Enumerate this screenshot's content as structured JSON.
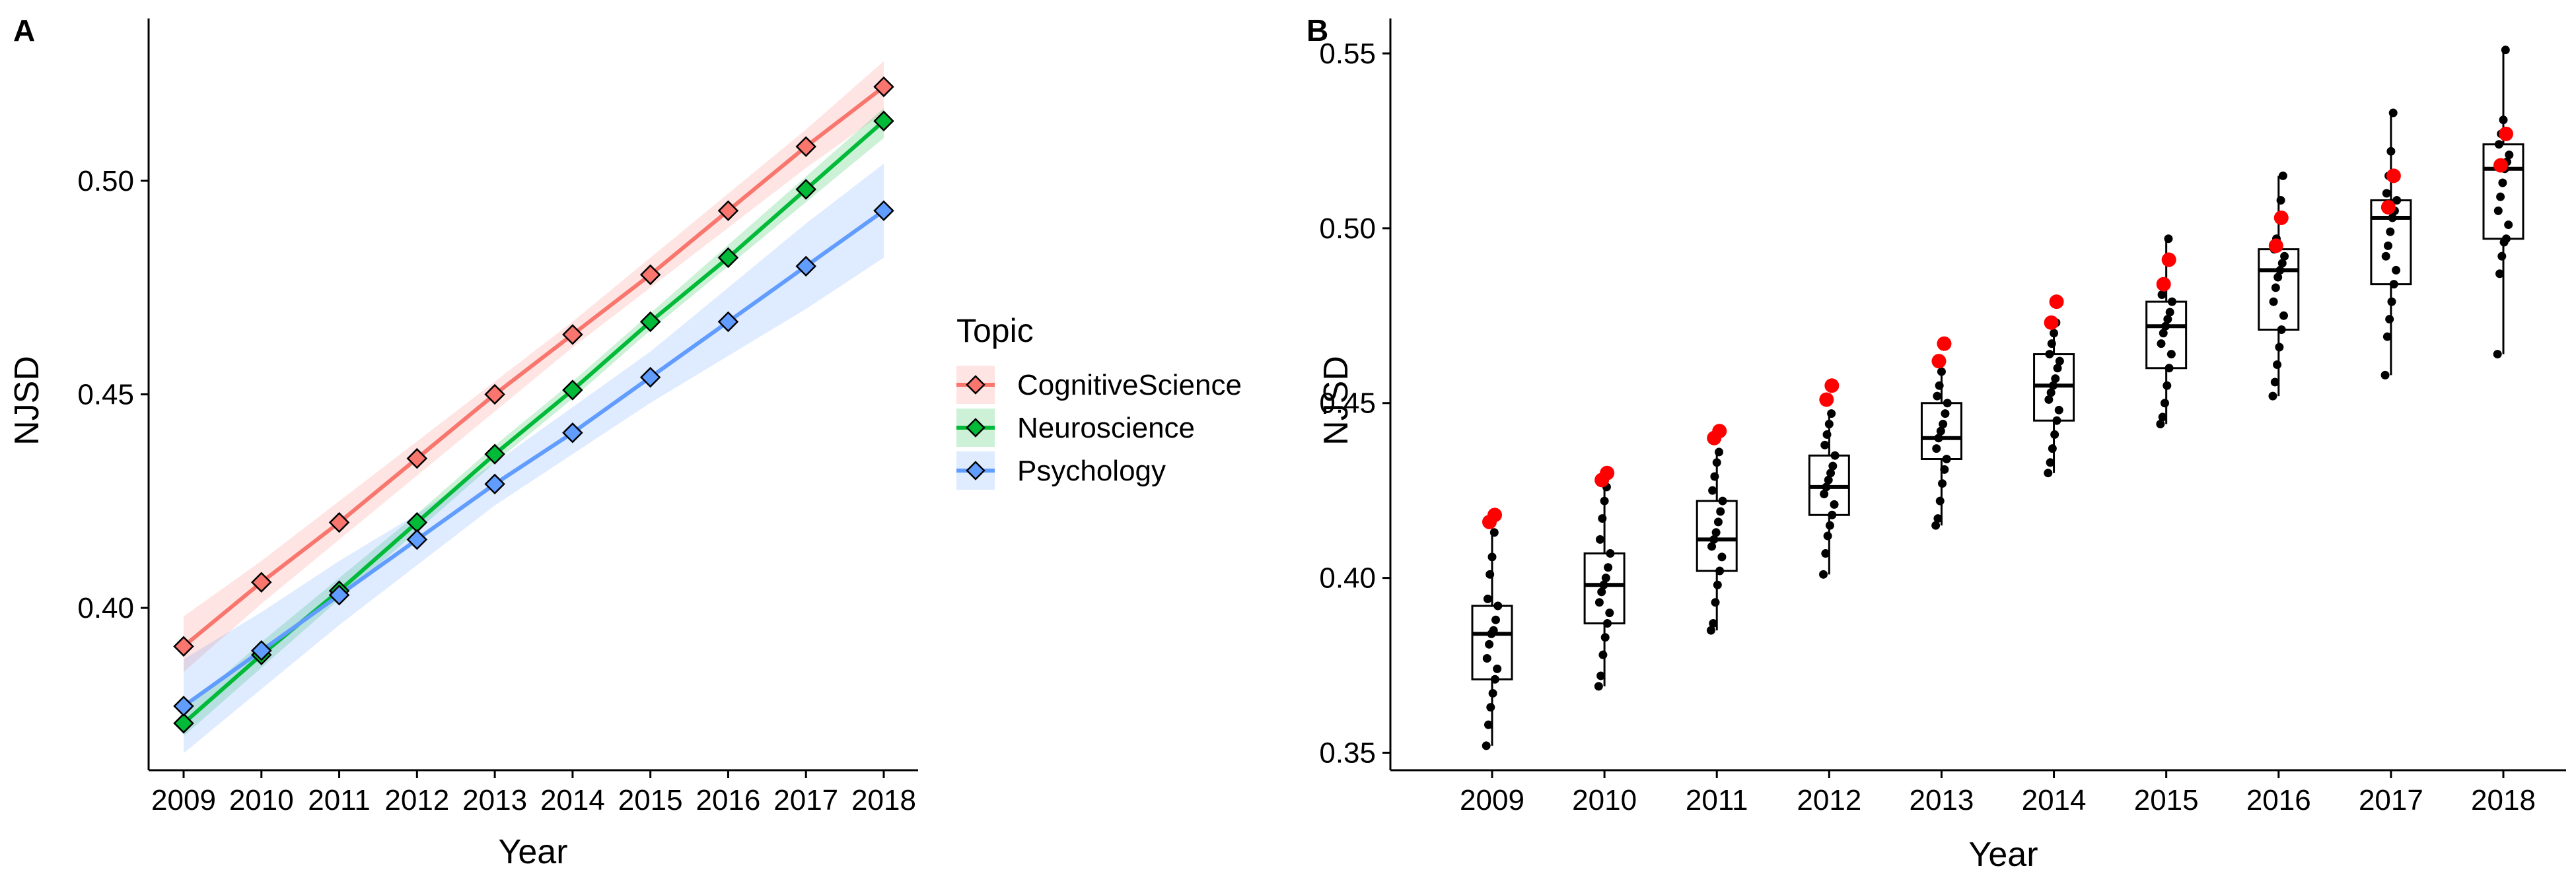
{
  "figure": {
    "panel_a_label": "A",
    "panel_b_label": "B",
    "legend_title": "Topic"
  },
  "chart_data": [
    {
      "panel": "A",
      "type": "line",
      "title": "",
      "xlabel": "Year",
      "ylabel": "NJSD",
      "x": [
        2009,
        2010,
        2011,
        2012,
        2013,
        2014,
        2015,
        2016,
        2017,
        2018
      ],
      "xlim": [
        2009,
        2018
      ],
      "ylim": [
        0.362,
        0.538
      ],
      "yticks": [
        "0.40",
        "0.45",
        "0.50"
      ],
      "ytick_values": [
        0.4,
        0.45,
        0.5
      ],
      "legend_position": "right",
      "grid": false,
      "series": [
        {
          "name": "CognitiveScience",
          "color": "#F8766D",
          "band_color": "#F8766D",
          "values": [
            0.391,
            0.406,
            0.42,
            0.435,
            0.45,
            0.464,
            0.478,
            0.493,
            0.508,
            0.522
          ],
          "ci_lower": [
            0.385,
            0.401,
            0.416,
            0.431,
            0.446,
            0.461,
            0.475,
            0.489,
            0.503,
            0.516
          ],
          "ci_upper": [
            0.398,
            0.411,
            0.425,
            0.439,
            0.453,
            0.467,
            0.482,
            0.497,
            0.512,
            0.528
          ]
        },
        {
          "name": "Neuroscience",
          "color": "#00BA38",
          "band_color": "#00BA38",
          "values": [
            0.373,
            0.389,
            0.404,
            0.42,
            0.436,
            0.451,
            0.467,
            0.482,
            0.498,
            0.514
          ],
          "ci_lower": [
            0.37,
            0.386,
            0.402,
            0.418,
            0.434,
            0.449,
            0.465,
            0.48,
            0.495,
            0.51
          ],
          "ci_upper": [
            0.376,
            0.392,
            0.407,
            0.422,
            0.438,
            0.453,
            0.469,
            0.485,
            0.501,
            0.517
          ]
        },
        {
          "name": "Psychology",
          "color": "#619CFF",
          "band_color": "#619CFF",
          "values": [
            0.377,
            0.39,
            0.403,
            0.416,
            0.429,
            0.441,
            0.454,
            0.467,
            0.48,
            0.493
          ],
          "ci_lower": [
            0.366,
            0.381,
            0.396,
            0.41,
            0.424,
            0.436,
            0.448,
            0.459,
            0.47,
            0.482
          ],
          "ci_upper": [
            0.388,
            0.399,
            0.411,
            0.422,
            0.434,
            0.447,
            0.46,
            0.475,
            0.49,
            0.504
          ]
        }
      ]
    },
    {
      "panel": "B",
      "type": "box",
      "title": "",
      "xlabel": "Year",
      "ylabel": "NJSD",
      "categories": [
        "2009",
        "2010",
        "2011",
        "2012",
        "2013",
        "2014",
        "2015",
        "2016",
        "2017",
        "2018"
      ],
      "ylim": [
        0.345,
        0.56
      ],
      "yticks": [
        "0.35",
        "0.40",
        "0.45",
        "0.50",
        "0.55"
      ],
      "ytick_values": [
        0.35,
        0.4,
        0.45,
        0.5,
        0.55
      ],
      "grid": false,
      "highlight_color": "#FF0000",
      "point_color": "#000000",
      "boxes": [
        {
          "year": "2009",
          "min": 0.352,
          "q1": 0.371,
          "median": 0.384,
          "q3": 0.392,
          "max": 0.413,
          "points": [
            0.352,
            0.358,
            0.363,
            0.367,
            0.371,
            0.374,
            0.377,
            0.381,
            0.384,
            0.385,
            0.388,
            0.392,
            0.394,
            0.401,
            0.406,
            0.413
          ],
          "highlights": [
            0.416,
            0.418
          ]
        },
        {
          "year": "2010",
          "min": 0.369,
          "q1": 0.387,
          "median": 0.398,
          "q3": 0.407,
          "max": 0.426,
          "points": [
            0.369,
            0.372,
            0.378,
            0.383,
            0.387,
            0.39,
            0.393,
            0.396,
            0.398,
            0.4,
            0.403,
            0.407,
            0.411,
            0.417,
            0.422,
            0.426
          ],
          "highlights": [
            0.428,
            0.43
          ]
        },
        {
          "year": "2011",
          "min": 0.385,
          "q1": 0.402,
          "median": 0.411,
          "q3": 0.422,
          "max": 0.436,
          "points": [
            0.385,
            0.387,
            0.393,
            0.398,
            0.402,
            0.406,
            0.409,
            0.411,
            0.413,
            0.416,
            0.419,
            0.422,
            0.425,
            0.429,
            0.433,
            0.436
          ],
          "highlights": [
            0.44,
            0.442
          ]
        },
        {
          "year": "2012",
          "min": 0.401,
          "q1": 0.418,
          "median": 0.426,
          "q3": 0.435,
          "max": 0.447,
          "points": [
            0.401,
            0.407,
            0.412,
            0.415,
            0.418,
            0.421,
            0.424,
            0.426,
            0.428,
            0.43,
            0.432,
            0.435,
            0.438,
            0.441,
            0.444,
            0.447
          ],
          "highlights": [
            0.451,
            0.455
          ]
        },
        {
          "year": "2013",
          "min": 0.415,
          "q1": 0.434,
          "median": 0.44,
          "q3": 0.45,
          "max": 0.459,
          "points": [
            0.415,
            0.417,
            0.422,
            0.427,
            0.431,
            0.434,
            0.437,
            0.44,
            0.442,
            0.444,
            0.447,
            0.45,
            0.452,
            0.455,
            0.459
          ],
          "highlights": [
            0.462,
            0.467
          ]
        },
        {
          "year": "2014",
          "min": 0.43,
          "q1": 0.445,
          "median": 0.455,
          "q3": 0.464,
          "max": 0.473,
          "points": [
            0.43,
            0.433,
            0.437,
            0.441,
            0.445,
            0.448,
            0.451,
            0.453,
            0.455,
            0.457,
            0.46,
            0.462,
            0.464,
            0.467,
            0.47,
            0.473
          ],
          "highlights": [
            0.473,
            0.479
          ]
        },
        {
          "year": "2015",
          "min": 0.444,
          "q1": 0.46,
          "median": 0.472,
          "q3": 0.479,
          "max": 0.497,
          "points": [
            0.444,
            0.446,
            0.45,
            0.455,
            0.46,
            0.464,
            0.467,
            0.47,
            0.472,
            0.474,
            0.476,
            0.479,
            0.481,
            0.484,
            0.491,
            0.497
          ],
          "highlights": [
            0.484,
            0.491
          ]
        },
        {
          "year": "2016",
          "min": 0.452,
          "q1": 0.471,
          "median": 0.488,
          "q3": 0.494,
          "max": 0.515,
          "points": [
            0.452,
            0.456,
            0.461,
            0.466,
            0.471,
            0.475,
            0.479,
            0.483,
            0.486,
            0.488,
            0.49,
            0.492,
            0.494,
            0.497,
            0.503,
            0.508,
            0.515
          ],
          "highlights": [
            0.495,
            0.503
          ]
        },
        {
          "year": "2017",
          "min": 0.458,
          "q1": 0.484,
          "median": 0.503,
          "q3": 0.508,
          "max": 0.533,
          "points": [
            0.458,
            0.469,
            0.474,
            0.479,
            0.484,
            0.488,
            0.492,
            0.495,
            0.499,
            0.503,
            0.505,
            0.508,
            0.51,
            0.515,
            0.522,
            0.533
          ],
          "highlights": [
            0.506,
            0.515
          ]
        },
        {
          "year": "2018",
          "min": 0.464,
          "q1": 0.497,
          "median": 0.517,
          "q3": 0.524,
          "max": 0.551,
          "points": [
            0.464,
            0.487,
            0.492,
            0.496,
            0.497,
            0.501,
            0.505,
            0.509,
            0.513,
            0.517,
            0.519,
            0.521,
            0.524,
            0.527,
            0.531,
            0.551
          ],
          "highlights": [
            0.518,
            0.527
          ]
        }
      ]
    }
  ]
}
